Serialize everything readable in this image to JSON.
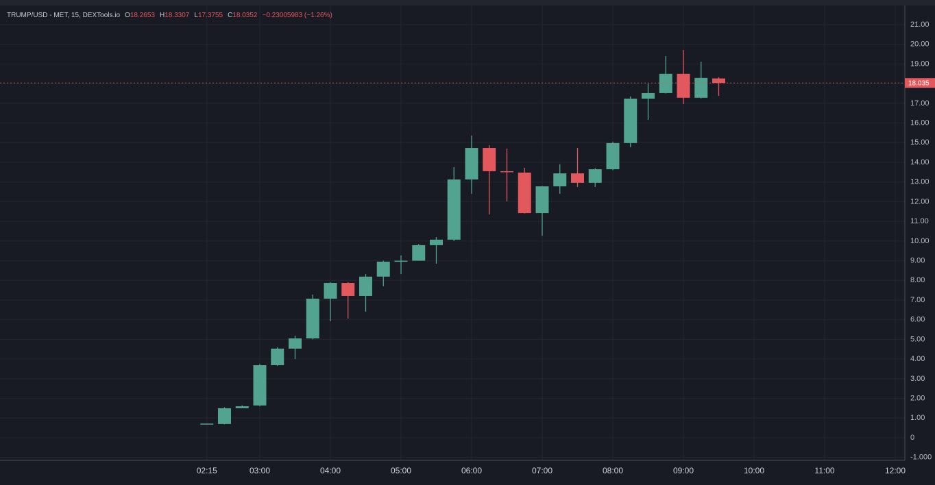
{
  "chart_data": {
    "type": "candlestick",
    "title": "TRUMP/USD - MET, 15, DEXTools.io",
    "ohlc_header": [
      {
        "label": "O",
        "value": 18.2653
      },
      {
        "label": "H",
        "value": 18.3307
      },
      {
        "label": "L",
        "value": 17.3755
      },
      {
        "label": "C",
        "value": 18.0352
      }
    ],
    "change_label": "−0.23005983 (−1.26%)",
    "last_price_label": "18.035",
    "x": [
      "02:15",
      "02:30",
      "02:45",
      "03:00",
      "03:15",
      "03:30",
      "03:45",
      "04:00",
      "04:15",
      "04:30",
      "04:45",
      "05:00",
      "05:15",
      "05:30",
      "05:45",
      "06:00",
      "06:15",
      "06:30",
      "06:45",
      "07:00",
      "07:15",
      "07:30",
      "07:45",
      "08:00",
      "08:15",
      "08:30",
      "08:45",
      "09:00",
      "09:15",
      "09:30"
    ],
    "open": [
      0.7,
      0.7,
      1.5,
      1.64,
      3.69,
      4.53,
      5.05,
      7.07,
      7.87,
      7.21,
      8.19,
      8.95,
      9.0,
      9.79,
      10.07,
      13.13,
      14.73,
      13.55,
      13.48,
      11.42,
      12.78,
      13.44,
      12.96,
      13.65,
      14.98,
      17.24,
      17.52,
      18.5,
      17.28,
      18.2653
    ],
    "high": [
      0.72,
      1.55,
      1.65,
      3.75,
      4.6,
      5.19,
      7.28,
      7.9,
      7.9,
      8.32,
      9.0,
      9.27,
      9.85,
      10.2,
      13.76,
      15.36,
      14.87,
      14.7,
      13.72,
      12.8,
      13.9,
      14.73,
      13.7,
      15.05,
      17.35,
      18.0,
      19.4,
      19.71,
      19.12,
      18.3307
    ],
    "low": [
      0.7,
      0.68,
      1.5,
      1.6,
      3.65,
      4.0,
      5.0,
      5.92,
      6.06,
      6.41,
      7.7,
      8.32,
      9.0,
      8.85,
      10.0,
      12.4,
      11.35,
      12.02,
      11.4,
      10.27,
      12.4,
      12.75,
      12.75,
      13.6,
      14.77,
      16.16,
      17.5,
      16.96,
      17.25,
      17.3755
    ],
    "close": [
      0.72,
      1.5,
      1.6,
      3.69,
      4.53,
      5.05,
      7.07,
      7.87,
      7.21,
      8.19,
      8.95,
      9.0,
      9.79,
      10.07,
      13.13,
      14.73,
      13.55,
      13.5,
      11.42,
      12.78,
      13.44,
      12.96,
      13.65,
      14.98,
      17.24,
      17.52,
      18.5,
      17.28,
      18.29,
      18.0352
    ],
    "up_color": "#52a38f",
    "down_color": "#e2585c",
    "ylim": [
      -1,
      21.9
    ],
    "yticks": [
      {
        "value": -1,
        "label": "-1.000"
      },
      0,
      {
        "value": 1,
        "label": "1.00"
      },
      {
        "value": 2,
        "label": "2.00"
      },
      {
        "value": 3,
        "label": "3.00"
      },
      {
        "value": 4,
        "label": "4.00"
      },
      {
        "value": 5,
        "label": "5.00"
      },
      {
        "value": 6,
        "label": "6.00"
      },
      {
        "value": 7,
        "label": "7.00"
      },
      {
        "value": 8,
        "label": "8.00"
      },
      {
        "value": 9,
        "label": "9.00"
      },
      {
        "value": 10,
        "label": "10.00"
      },
      {
        "value": 11,
        "label": "11.00"
      },
      {
        "value": 12,
        "label": "12.00"
      },
      {
        "value": 13,
        "label": "13.00"
      },
      {
        "value": 14,
        "label": "14.00"
      },
      {
        "value": 15,
        "label": "15.00"
      },
      {
        "value": 16,
        "label": "16.00"
      },
      {
        "value": 17,
        "label": "17.00"
      },
      {
        "value": 18,
        "label": "18.00"
      },
      {
        "value": 19,
        "label": "19.00"
      },
      {
        "value": 20,
        "label": "20.00"
      },
      {
        "value": 21,
        "label": "21.00"
      }
    ],
    "xticks": [
      "02:15",
      "03:00",
      "04:00",
      "05:00",
      "06:00",
      "07:00",
      "08:00",
      "09:00",
      "10:00",
      "11:00",
      "12:00"
    ],
    "grid": true
  }
}
